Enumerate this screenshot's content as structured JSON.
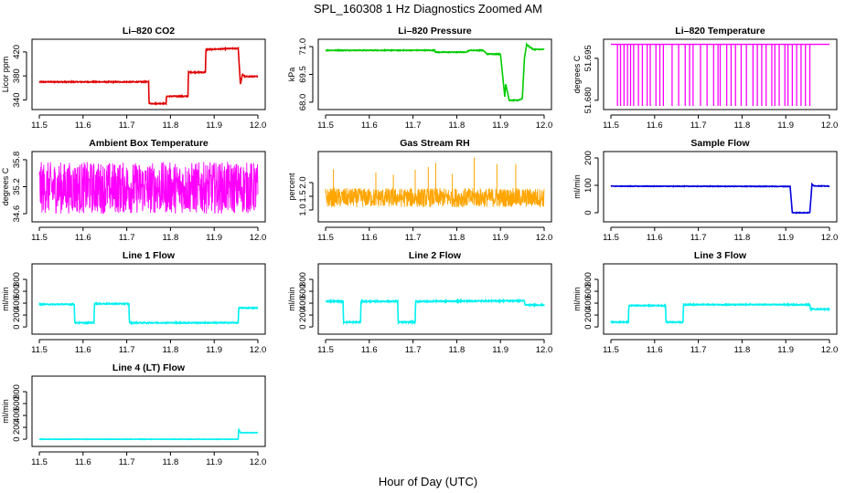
{
  "figure": {
    "title": "SPL_160308  1 Hz Diagnostics Zoomed AM",
    "xlabel": "Hour of Day (UTC)"
  },
  "chart_data": [
    {
      "type": "line",
      "title": "Li–820 CO2",
      "ylabel": "Licor ppm",
      "color": "#e00000",
      "xlim": [
        11.5,
        12.0
      ],
      "ylim": [
        330,
        435
      ],
      "x_ticks": [
        "11.5",
        "11.6",
        "11.7",
        "11.8",
        "11.9",
        "12.0"
      ],
      "y_ticks": [
        "340",
        "380",
        "420"
      ],
      "style": "step",
      "noise": 0.8,
      "series": [
        {
          "x": [
            11.5,
            11.75,
            11.751,
            11.79,
            11.791,
            11.84,
            11.841,
            11.88,
            11.881,
            11.955,
            11.96,
            11.965,
            11.97,
            12.0
          ],
          "y": [
            370,
            370,
            334,
            334,
            346,
            346,
            386,
            386,
            424,
            426,
            366,
            383,
            379,
            379
          ]
        }
      ]
    },
    {
      "type": "line",
      "title": "Li–820 Pressure",
      "ylabel": "kPa",
      "color": "#00cc00",
      "xlim": [
        11.5,
        12.0
      ],
      "ylim": [
        67.8,
        71.2
      ],
      "x_ticks": [
        "11.5",
        "11.6",
        "11.7",
        "11.8",
        "11.9",
        "12.0"
      ],
      "y_ticks": [
        "68.0",
        "69.5",
        "71.0"
      ],
      "style": "step",
      "noise": 0.02,
      "series": [
        {
          "x": [
            11.5,
            11.75,
            11.751,
            11.82,
            11.83,
            11.86,
            11.87,
            11.9,
            11.91,
            11.912,
            11.92,
            11.94,
            11.95,
            11.955,
            11.96,
            11.966,
            11.975,
            12.0
          ],
          "y": [
            70.8,
            70.8,
            70.7,
            70.7,
            70.8,
            70.8,
            70.6,
            70.6,
            68.3,
            69.0,
            68.1,
            68.1,
            68.2,
            70.4,
            71.1,
            71.0,
            70.85,
            70.85
          ]
        }
      ]
    },
    {
      "type": "line",
      "title": "Li–820 Temperature",
      "ylabel": "degrees C",
      "color": "#ff00ff",
      "xlim": [
        11.5,
        12.0
      ],
      "ylim": [
        51.678,
        51.7005
      ],
      "x_ticks": [
        "11.5",
        "11.6",
        "11.7",
        "11.8",
        "11.9",
        "12.0"
      ],
      "y_ticks": [
        "51.680",
        "51.695"
      ],
      "style": "spikes",
      "base": 51.7,
      "low": 51.678,
      "spike_positions": [
        11.515,
        11.522,
        11.53,
        11.538,
        11.545,
        11.552,
        11.563,
        11.572,
        11.583,
        11.59,
        11.603,
        11.612,
        11.62,
        11.64,
        11.655,
        11.67,
        11.68,
        11.688,
        11.705,
        11.72,
        11.735,
        11.745,
        11.75,
        11.765,
        11.775,
        11.785,
        11.798,
        11.81,
        11.825,
        11.835,
        11.845,
        11.855,
        11.868,
        11.875,
        11.885,
        11.898,
        11.905,
        11.915,
        11.925,
        11.935,
        11.945,
        11.955
      ],
      "series": [
        {
          "x": [
            11.5,
            12.0
          ],
          "y": [
            51.7,
            51.7
          ]
        }
      ]
    },
    {
      "type": "line",
      "title": "Ambient Box Temperature",
      "ylabel": "degrees C",
      "color": "#ff00ff",
      "xlim": [
        11.5,
        12.0
      ],
      "ylim": [
        34.5,
        35.9
      ],
      "x_ticks": [
        "11.5",
        "11.6",
        "11.7",
        "11.8",
        "11.9",
        "12.0"
      ],
      "y_ticks": [
        "34.6",
        "35.2",
        "35.8"
      ],
      "style": "noise",
      "band": [
        34.6,
        35.75
      ],
      "series": [
        {
          "x": [
            11.5,
            12.0
          ],
          "y": [
            35.15,
            35.15
          ]
        }
      ]
    },
    {
      "type": "line",
      "title": "Gas Stream RH",
      "ylabel": "percent",
      "color": "#ffa500",
      "xlim": [
        11.5,
        12.0
      ],
      "ylim": [
        0.7,
        3.0
      ],
      "x_ticks": [
        "11.5",
        "11.6",
        "11.7",
        "11.8",
        "11.9",
        "12.0"
      ],
      "y_ticks": [
        "1.0",
        "1.5",
        "2.0"
      ],
      "style": "noise",
      "band": [
        1.1,
        1.8
      ],
      "spike_positions": [
        11.518,
        11.615,
        11.655,
        11.705,
        11.735,
        11.752,
        11.79,
        11.84,
        11.892,
        11.935
      ],
      "series": [
        {
          "x": [
            11.5,
            12.0
          ],
          "y": [
            1.45,
            1.45
          ]
        }
      ]
    },
    {
      "type": "line",
      "title": "Sample Flow",
      "ylabel": "ml/min",
      "color": "#0000dd",
      "xlim": [
        11.5,
        12.0
      ],
      "ylim": [
        -20,
        210
      ],
      "x_ticks": [
        "11.5",
        "11.6",
        "11.7",
        "11.8",
        "11.9",
        "12.0"
      ],
      "y_ticks": [
        "0",
        "100",
        "200"
      ],
      "style": "step",
      "noise": 1,
      "series": [
        {
          "x": [
            11.5,
            11.91,
            11.915,
            11.955,
            11.96,
            11.965,
            12.0
          ],
          "y": [
            97,
            96,
            0,
            0,
            104,
            98,
            97
          ]
        }
      ]
    },
    {
      "type": "line",
      "title": "Line 1 Flow",
      "ylabel": "ml/min",
      "color": "#00f0f0",
      "xlim": [
        11.5,
        12.0
      ],
      "ylim": [
        -60,
        1000
      ],
      "x_ticks": [
        "11.5",
        "11.6",
        "11.7",
        "11.8",
        "11.9",
        "12.0"
      ],
      "y_ticks": [
        "0",
        "200",
        "400",
        "600",
        "800"
      ],
      "style": "step",
      "noise": 8,
      "series": [
        {
          "x": [
            11.5,
            11.58,
            11.581,
            11.625,
            11.626,
            11.705,
            11.706,
            11.955,
            11.956,
            12.0
          ],
          "y": [
            380,
            380,
            70,
            70,
            390,
            390,
            70,
            70,
            320,
            320
          ]
        }
      ]
    },
    {
      "type": "line",
      "title": "Line 2 Flow",
      "ylabel": "ml/min",
      "color": "#00f0f0",
      "xlim": [
        11.5,
        12.0
      ],
      "ylim": [
        -60,
        1000
      ],
      "x_ticks": [
        "11.5",
        "11.6",
        "11.7",
        "11.8",
        "11.9",
        "12.0"
      ],
      "y_ticks": [
        "0",
        "200",
        "400",
        "600",
        "800"
      ],
      "style": "step",
      "noise": 10,
      "series": [
        {
          "x": [
            11.5,
            11.54,
            11.541,
            11.58,
            11.581,
            11.665,
            11.666,
            11.705,
            11.706,
            11.955,
            11.956,
            12.0
          ],
          "y": [
            430,
            430,
            80,
            80,
            430,
            430,
            80,
            80,
            430,
            440,
            370,
            370
          ]
        }
      ]
    },
    {
      "type": "line",
      "title": "Line 3 Flow",
      "ylabel": "ml/min",
      "color": "#00f0f0",
      "xlim": [
        11.5,
        12.0
      ],
      "ylim": [
        -60,
        1000
      ],
      "x_ticks": [
        "11.5",
        "11.6",
        "11.7",
        "11.8",
        "11.9",
        "12.0"
      ],
      "y_ticks": [
        "0",
        "200",
        "400",
        "600",
        "800"
      ],
      "style": "step",
      "noise": 8,
      "series": [
        {
          "x": [
            11.5,
            11.54,
            11.541,
            11.625,
            11.626,
            11.665,
            11.666,
            11.955,
            11.956,
            12.0
          ],
          "y": [
            80,
            80,
            360,
            360,
            80,
            80,
            375,
            375,
            300,
            300
          ]
        }
      ]
    },
    {
      "type": "line",
      "title": "Line 4 (LT) Flow",
      "ylabel": "ml/min",
      "color": "#00f0f0",
      "xlim": [
        11.5,
        12.0
      ],
      "ylim": [
        -60,
        1000
      ],
      "x_ticks": [
        "11.5",
        "11.6",
        "11.7",
        "11.8",
        "11.9",
        "12.0"
      ],
      "y_ticks": [
        "0",
        "200",
        "400",
        "600",
        "800"
      ],
      "style": "step",
      "noise": 3,
      "series": [
        {
          "x": [
            11.5,
            11.955,
            11.956,
            11.96,
            11.962,
            12.0
          ],
          "y": [
            0,
            0,
            170,
            110,
            110,
            110
          ]
        }
      ]
    }
  ]
}
